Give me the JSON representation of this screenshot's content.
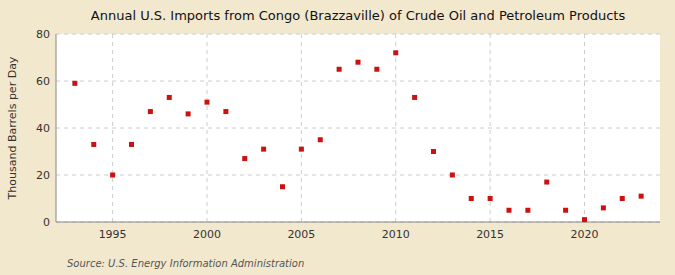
{
  "chart_data": {
    "type": "scatter",
    "title": "Annual U.S. Imports from Congo (Brazzaville) of Crude Oil and Petroleum Products",
    "y_label": "Thousand Barrels per Day",
    "source": "Source: U.S. Energy Information Administration",
    "x": [
      1993,
      1994,
      1995,
      1996,
      1997,
      1998,
      1999,
      2000,
      2001,
      2002,
      2003,
      2004,
      2005,
      2006,
      2007,
      2008,
      2009,
      2010,
      2011,
      2012,
      2013,
      2014,
      2015,
      2016,
      2017,
      2018,
      2019,
      2020,
      2021,
      2022,
      2023
    ],
    "values": [
      59,
      33,
      20,
      33,
      47,
      53,
      46,
      51,
      47,
      27,
      31,
      15,
      31,
      35,
      65,
      68,
      65,
      72,
      53,
      30,
      20,
      10,
      10,
      5,
      5,
      17,
      5,
      1,
      6,
      10,
      11
    ],
    "color": "#cc1111",
    "marker": "square",
    "xlim": [
      1992,
      2024
    ],
    "ylim": [
      0,
      80
    ],
    "xticks": [
      1995,
      2000,
      2005,
      2010,
      2015,
      2020
    ],
    "yticks": [
      0,
      20,
      40,
      60,
      80
    ],
    "grid": true
  }
}
